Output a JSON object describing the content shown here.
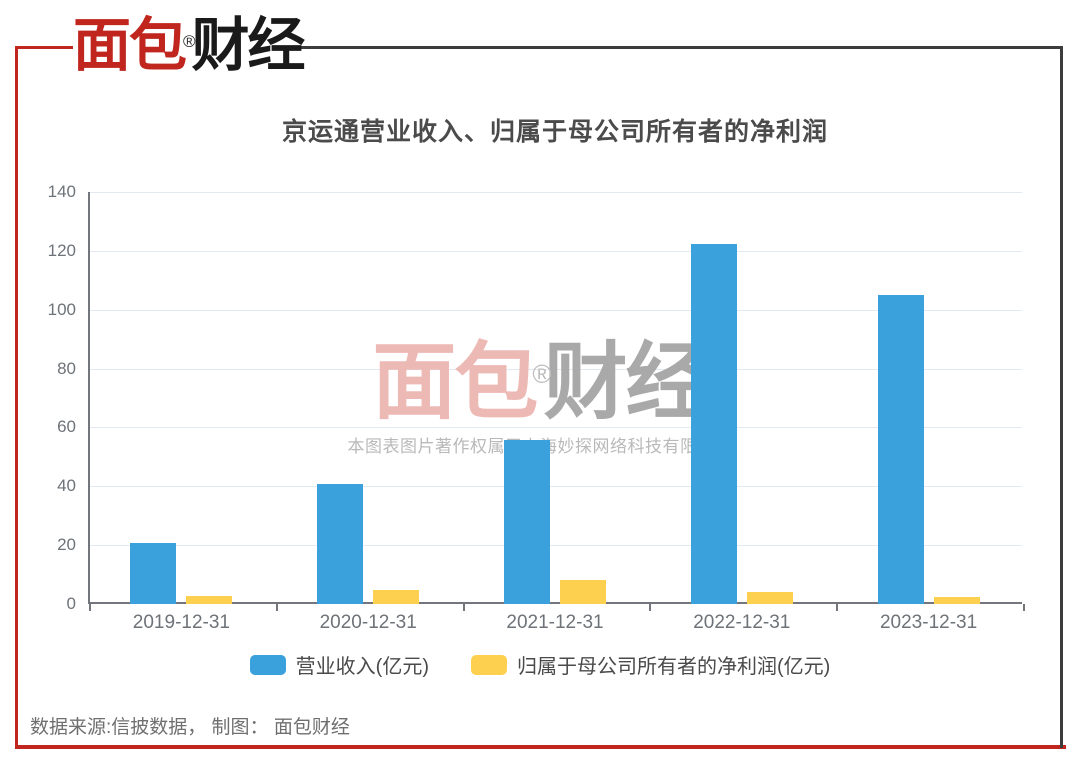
{
  "brand": {
    "logo_red": "面包",
    "logo_black": "财经",
    "reg_mark": "®"
  },
  "chart_data": {
    "type": "bar",
    "title": "京运通营业收入、归属于母公司所有者的净利润",
    "categories": [
      "2019-12-31",
      "2020-12-31",
      "2021-12-31",
      "2022-12-31",
      "2023-12-31"
    ],
    "series": [
      {
        "key": "revenue",
        "name": "营业收入(亿元)",
        "color": "#3BA1DC",
        "values": [
          20.8,
          40.7,
          55.6,
          122.2,
          105
        ]
      },
      {
        "key": "net-profit",
        "name": "归属于母公司所有者的净利润(亿元)",
        "color": "#FDD050",
        "values": [
          2.8,
          4.6,
          8.2,
          4.2,
          2.3
        ]
      }
    ],
    "xlabel": "",
    "ylabel": "",
    "ylim": [
      0,
      140
    ],
    "yticks": [
      0,
      20,
      40,
      60,
      80,
      100,
      120,
      140
    ],
    "grid": true,
    "legend_position": "bottom"
  },
  "watermark": {
    "logo_red": "面包",
    "logo_gray": "财经",
    "reg_mark": "®",
    "caption": "本图表图片著作权属于上海妙探网络科技有限公司"
  },
  "footer": {
    "source": "数据来源:信披数据， 制图： 面包财经"
  },
  "colors": {
    "frame_red": "#C0251E",
    "frame_gray": "#3C3C3C",
    "revenue": "#3BA1DC",
    "profit": "#FDD050",
    "grid": "#E3E9F3",
    "axis": "#73777D",
    "labels": "#6E7379",
    "title": "#4B4B4B"
  }
}
